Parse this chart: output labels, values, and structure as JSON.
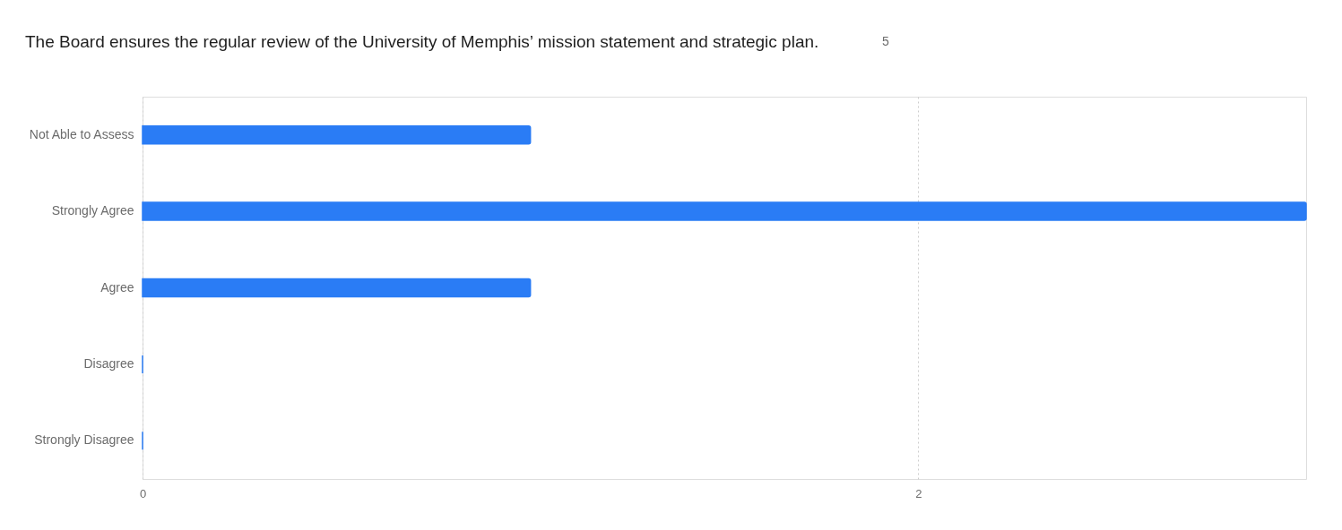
{
  "chart_data": {
    "type": "bar",
    "orientation": "horizontal",
    "title": "The Board ensures the regular review of the University of Memphis’ mission statement and strategic plan.",
    "annotations": [
      "5"
    ],
    "categories": [
      "Not Able to Assess",
      "Strongly Agree",
      "Agree",
      "Disagree",
      "Strongly Disagree"
    ],
    "values": [
      1,
      3,
      1,
      0,
      0
    ],
    "color": "#2a7cf5",
    "xlim": [
      0,
      3
    ],
    "xticks": [
      0,
      2
    ],
    "grid": "x"
  }
}
